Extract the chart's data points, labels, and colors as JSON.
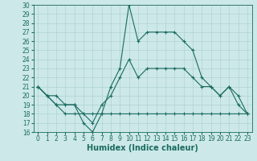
{
  "xlabel": "Humidex (Indice chaleur)",
  "xlim": [
    -0.5,
    23.5
  ],
  "ylim": [
    16,
    30
  ],
  "xticks": [
    0,
    1,
    2,
    3,
    4,
    5,
    6,
    7,
    8,
    9,
    10,
    11,
    12,
    13,
    14,
    15,
    16,
    17,
    18,
    19,
    20,
    21,
    22,
    23
  ],
  "yticks": [
    16,
    17,
    18,
    19,
    20,
    21,
    22,
    23,
    24,
    25,
    26,
    27,
    28,
    29,
    30
  ],
  "bg_color": "#cce8e8",
  "line_color": "#1a6b60",
  "grid_color": "#aacece",
  "lines": [
    [
      21,
      20,
      20,
      19,
      19,
      17,
      16,
      18,
      21,
      23,
      30,
      26,
      27,
      27,
      27,
      27,
      26,
      25,
      22,
      21,
      20,
      21,
      19,
      18
    ],
    [
      21,
      20,
      19,
      19,
      19,
      18,
      17,
      19,
      20,
      22,
      24,
      22,
      23,
      23,
      23,
      23,
      23,
      22,
      21,
      21,
      20,
      21,
      20,
      18
    ],
    [
      21,
      20,
      19,
      18,
      18,
      18,
      18,
      18,
      18,
      18,
      18,
      18,
      18,
      18,
      18,
      18,
      18,
      18,
      18,
      18,
      18,
      18,
      18,
      18
    ]
  ],
  "xlabel_fontsize": 7,
  "tick_fontsize": 5.5,
  "linewidth": 0.8,
  "markersize": 3
}
